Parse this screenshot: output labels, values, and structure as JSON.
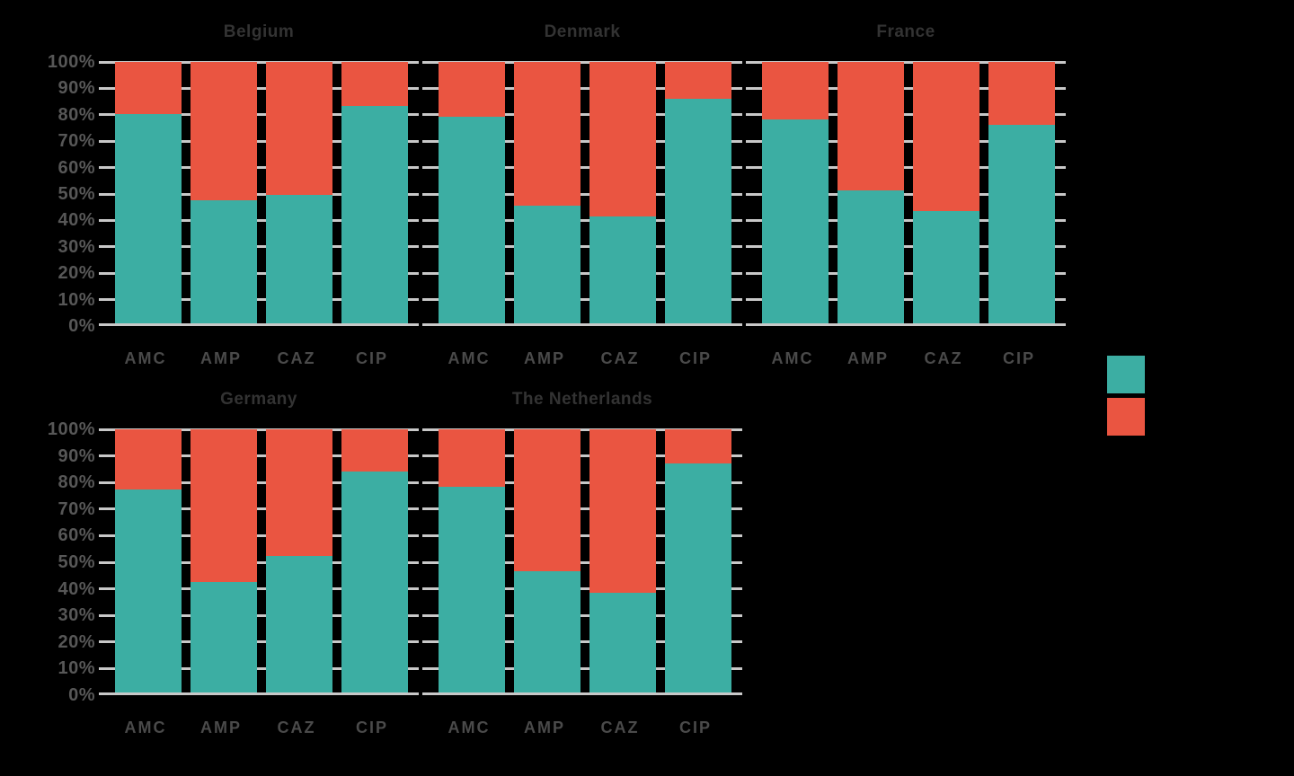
{
  "chart_data": {
    "type": "bar",
    "stacked": true,
    "value_unit": "percent",
    "categories": [
      "AMC",
      "AMP",
      "CAZ",
      "CIP"
    ],
    "y_tick_labels": [
      "100%",
      "90%",
      "80%",
      "70%",
      "60%",
      "50%",
      "40%",
      "30%",
      "20%",
      "10%",
      "0%"
    ],
    "ylim": [
      0,
      100
    ],
    "grid": true,
    "colors": {
      "teal": "#3CAEA3",
      "red": "#EA5541",
      "gridline": "#C8C8C8",
      "tick_label": "#575757",
      "title": "#333333",
      "background": "#000000"
    },
    "legend": {
      "position": "right-middle",
      "entries": [
        {
          "swatch_color": "#3CAEA3"
        },
        {
          "swatch_color": "#EA5541"
        }
      ]
    },
    "subplots": [
      {
        "title": "Belgium",
        "series": [
          {
            "name": "teal",
            "values": [
              80,
              47,
              49,
              83
            ]
          },
          {
            "name": "red",
            "values": [
              20,
              53,
              51,
              17
            ]
          }
        ]
      },
      {
        "title": "Denmark",
        "series": [
          {
            "name": "teal",
            "values": [
              79,
              45,
              41,
              86
            ]
          },
          {
            "name": "red",
            "values": [
              21,
              55,
              59,
              14
            ]
          }
        ]
      },
      {
        "title": "France",
        "series": [
          {
            "name": "teal",
            "values": [
              78,
              51,
              43,
              76
            ]
          },
          {
            "name": "red",
            "values": [
              22,
              49,
              57,
              24
            ]
          }
        ]
      },
      {
        "title": "Germany",
        "series": [
          {
            "name": "teal",
            "values": [
              77,
              42,
              52,
              84
            ]
          },
          {
            "name": "red",
            "values": [
              23,
              58,
              48,
              16
            ]
          }
        ]
      },
      {
        "title": "The Netherlands",
        "series": [
          {
            "name": "teal",
            "values": [
              78,
              46,
              38,
              87
            ]
          },
          {
            "name": "red",
            "values": [
              22,
              54,
              62,
              13
            ]
          }
        ]
      }
    ]
  }
}
